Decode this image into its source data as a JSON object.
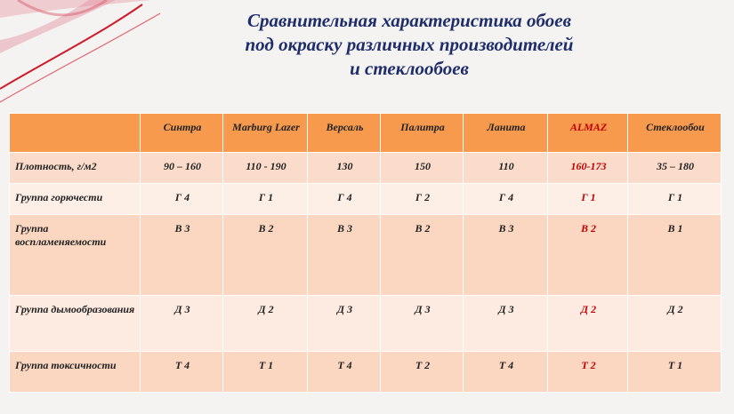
{
  "header": {
    "title": [
      "Сравнительная характеристика обоев",
      "под окраску различных производителей",
      "и стеклообоев"
    ]
  },
  "table": {
    "columns": [
      "Синтра",
      "Marburg Lazer",
      "Версаль",
      "Палитра",
      "Ланита",
      "ALMAZ",
      "Стеклообои"
    ],
    "rows": [
      {
        "label": "Плотность, г/м2",
        "cells": [
          "90 – 160",
          "110 - 190",
          "130",
          "150",
          "110",
          "160-173",
          "35 – 180"
        ]
      },
      {
        "label": "Группа горючести",
        "cells": [
          "Г 4",
          "Г 1",
          "Г 4",
          "Г 2",
          "Г 4",
          "Г 1",
          "Г 1"
        ]
      },
      {
        "label": "Группа воспламеняемости",
        "cells": [
          "В 3",
          "В 2",
          "В 3",
          "В 2",
          "В 3",
          "В 2",
          "В 1"
        ]
      },
      {
        "label": "Группа дымообразования",
        "cells": [
          "Д 3",
          "Д 2",
          "Д 3",
          "Д 3",
          "Д 3",
          "Д 2",
          "Д 2"
        ]
      },
      {
        "label": "Группа токсичности",
        "cells": [
          "Т 4",
          "Т 1",
          "Т 4",
          "Т 2",
          "Т 4",
          "Т 2",
          "Т 1"
        ]
      }
    ]
  }
}
